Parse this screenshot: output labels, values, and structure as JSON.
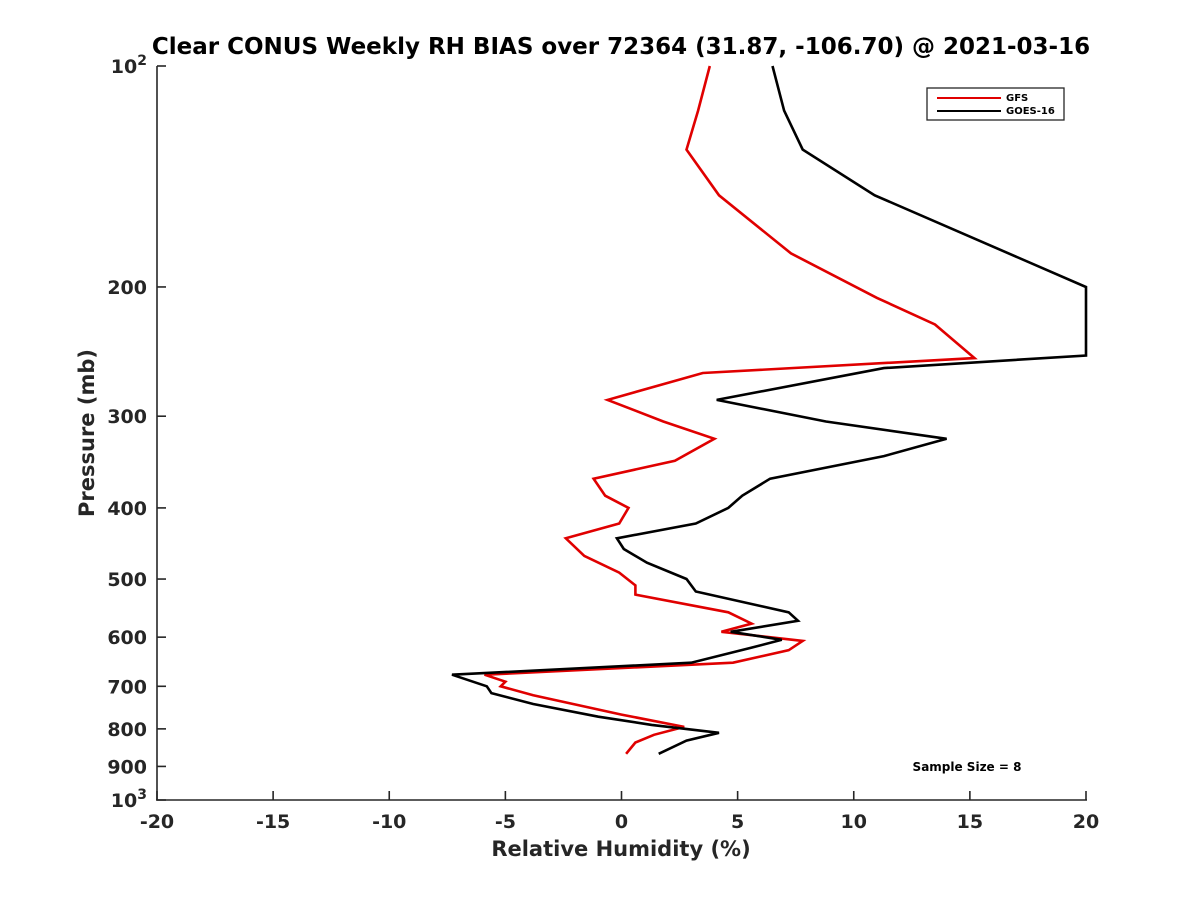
{
  "chart_data": {
    "type": "line",
    "title": "Clear CONUS Weekly RH BIAS over 72364 (31.87, -106.70) @ 2021-03-16",
    "xlabel": "Relative Humidity (%)",
    "ylabel": "Pressure (mb)",
    "xlim": [
      -20,
      20
    ],
    "ylim": [
      100,
      1000
    ],
    "yscale": "log",
    "y_reversed": true,
    "x_ticks": [
      -20,
      -15,
      -10,
      -5,
      0,
      5,
      10,
      15,
      20
    ],
    "x_tick_labels": [
      "-20",
      "-15",
      "-10",
      "-5",
      "0",
      "5",
      "10",
      "15",
      "20"
    ],
    "y_ticks": [
      {
        "value": 100,
        "base": "10",
        "exp": "2"
      },
      {
        "value": 200,
        "label": "200"
      },
      {
        "value": 300,
        "label": "300"
      },
      {
        "value": 400,
        "label": "400"
      },
      {
        "value": 500,
        "label": "500"
      },
      {
        "value": 600,
        "label": "600"
      },
      {
        "value": 700,
        "label": "700"
      },
      {
        "value": 800,
        "label": "800"
      },
      {
        "value": 900,
        "label": "900"
      },
      {
        "value": 1000,
        "base": "10",
        "exp": "3"
      }
    ],
    "grid": false,
    "legend_position": "top-right",
    "annotation": "Sample Size = 8",
    "series": [
      {
        "name": "GFS",
        "color": "#e00000",
        "points": [
          [
            3.8,
            100
          ],
          [
            3.3,
            115
          ],
          [
            2.8,
            130
          ],
          [
            4.2,
            150
          ],
          [
            7.3,
            180
          ],
          [
            11.0,
            207
          ],
          [
            13.5,
            225
          ],
          [
            15.2,
            250
          ],
          [
            3.5,
            262
          ],
          [
            -0.6,
            285
          ],
          [
            1.8,
            305
          ],
          [
            4.0,
            322
          ],
          [
            2.3,
            345
          ],
          [
            -1.2,
            365
          ],
          [
            -0.7,
            385
          ],
          [
            0.3,
            400
          ],
          [
            -0.1,
            420
          ],
          [
            -2.4,
            440
          ],
          [
            -1.6,
            465
          ],
          [
            -0.1,
            490
          ],
          [
            0.6,
            510
          ],
          [
            0.6,
            525
          ],
          [
            4.6,
            555
          ],
          [
            5.6,
            575
          ],
          [
            4.3,
            590
          ],
          [
            7.8,
            607
          ],
          [
            7.2,
            625
          ],
          [
            4.8,
            650
          ],
          [
            -5.9,
            675
          ],
          [
            -5.0,
            690
          ],
          [
            -5.2,
            700
          ],
          [
            -3.8,
            720
          ],
          [
            0.0,
            765
          ],
          [
            2.7,
            795
          ],
          [
            1.4,
            815
          ],
          [
            0.6,
            835
          ],
          [
            0.2,
            865
          ]
        ]
      },
      {
        "name": "GOES-16",
        "color": "#000000",
        "points": [
          [
            6.5,
            100
          ],
          [
            7.0,
            115
          ],
          [
            7.8,
            130
          ],
          [
            10.9,
            150
          ],
          [
            20.0,
            200
          ],
          [
            20.0,
            202
          ],
          [
            20.0,
            248
          ],
          [
            11.3,
            258
          ],
          [
            4.1,
            285
          ],
          [
            8.8,
            305
          ],
          [
            14.0,
            322
          ],
          [
            11.3,
            340
          ],
          [
            6.4,
            365
          ],
          [
            5.2,
            385
          ],
          [
            4.6,
            400
          ],
          [
            3.2,
            420
          ],
          [
            -0.2,
            440
          ],
          [
            0.1,
            455
          ],
          [
            1.1,
            475
          ],
          [
            2.8,
            500
          ],
          [
            3.2,
            520
          ],
          [
            7.2,
            555
          ],
          [
            7.6,
            570
          ],
          [
            4.7,
            590
          ],
          [
            6.9,
            605
          ],
          [
            5.6,
            620
          ],
          [
            3.0,
            650
          ],
          [
            -7.3,
            675
          ],
          [
            -5.8,
            700
          ],
          [
            -5.6,
            715
          ],
          [
            -3.8,
            740
          ],
          [
            -1.0,
            770
          ],
          [
            1.3,
            790
          ],
          [
            4.2,
            810
          ],
          [
            2.8,
            830
          ],
          [
            1.6,
            865
          ]
        ]
      }
    ]
  }
}
